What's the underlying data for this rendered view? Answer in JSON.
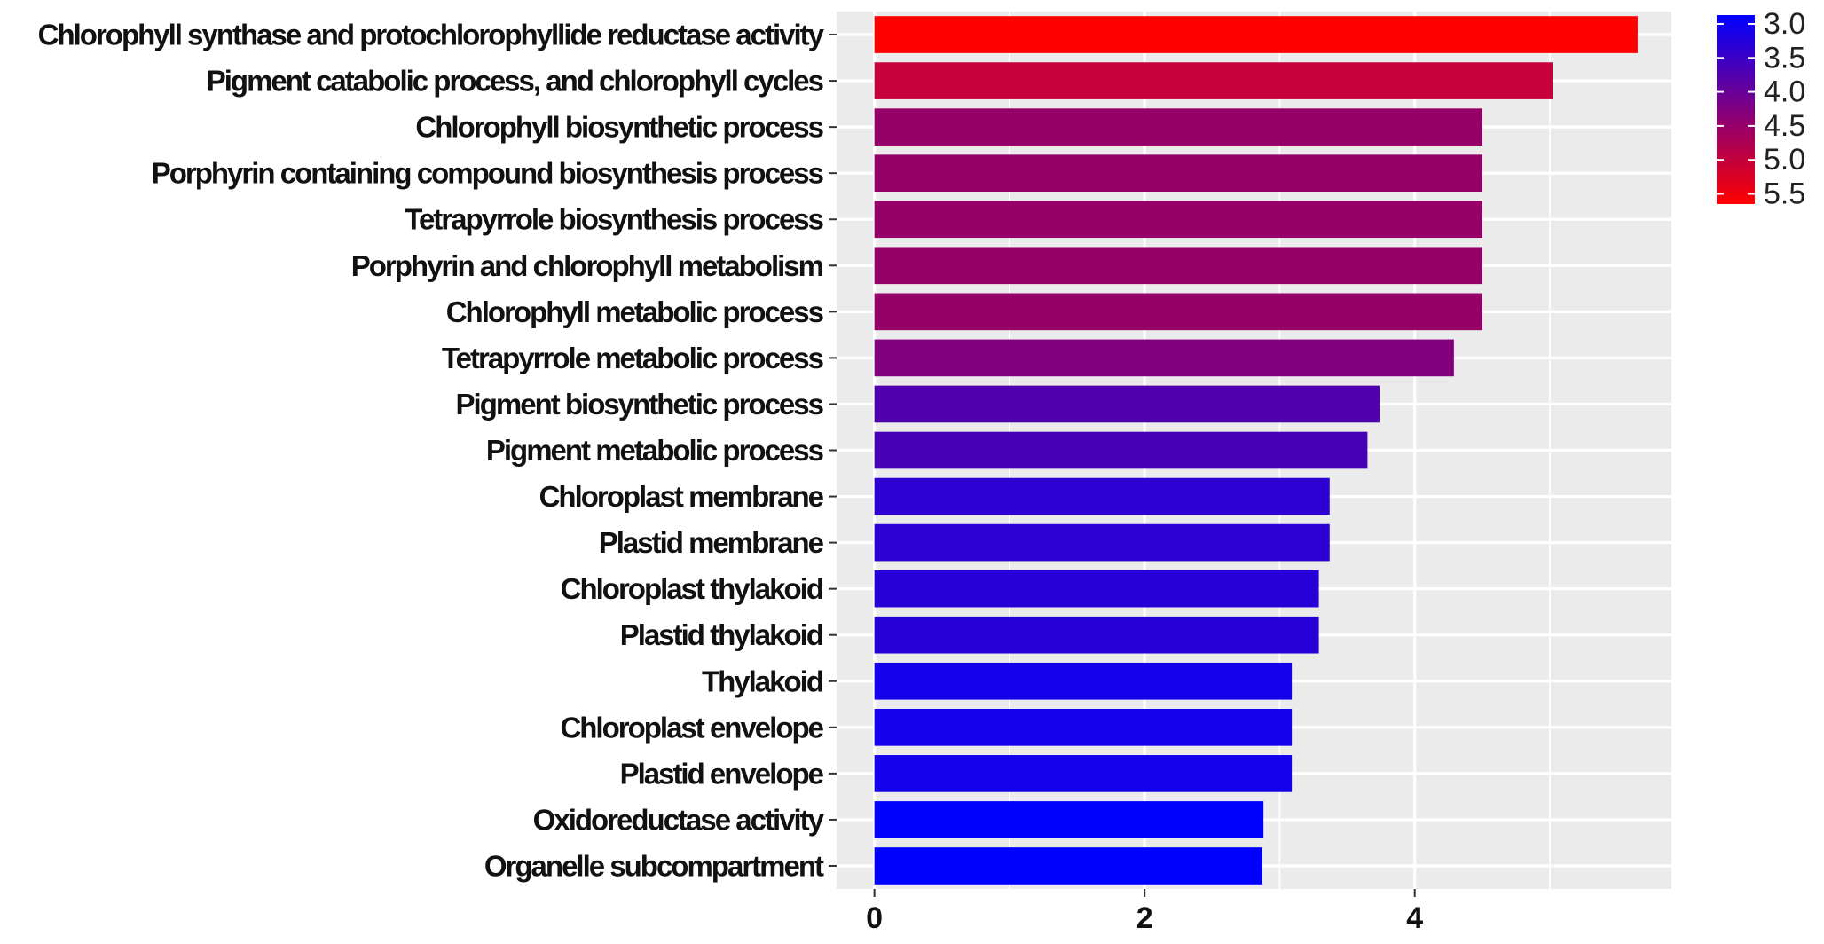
{
  "chart_data": {
    "type": "bar",
    "orientation": "horizontal",
    "categories": [
      "Chlorophyll synthase and protochlorophyllide reductase activity",
      "Pigment catabolic process, and chlorophyll cycles",
      "Chlorophyll biosynthetic process",
      "Porphyrin containing compound biosynthesis process",
      "Tetrapyrrole biosynthesis process",
      "Porphyrin and chlorophyll metabolism",
      "Chlorophyll metabolic process",
      "Tetrapyrrole metabolic process",
      "Pigment biosynthetic process",
      "Pigment metabolic process",
      "Chloroplast membrane",
      "Plastid membrane",
      "Chloroplast thylakoid",
      "Plastid thylakoid",
      "Thylakoid",
      "Chloroplast envelope",
      "Plastid envelope",
      "Oxidoreductase activity",
      "Organelle subcompartment"
    ],
    "values": [
      5.65,
      5.02,
      4.5,
      4.5,
      4.5,
      4.5,
      4.5,
      4.29,
      3.74,
      3.65,
      3.37,
      3.37,
      3.29,
      3.29,
      3.09,
      3.09,
      3.09,
      2.88,
      2.87
    ],
    "xlim": [
      -0.28,
      5.9
    ],
    "xticks": [
      0,
      2,
      4
    ],
    "xtick_labels": [
      "0",
      "2",
      "4"
    ],
    "grid": true,
    "background": "#EBEBEB",
    "color_scale": {
      "min": 2.87,
      "max": 5.65,
      "low_color": "#0000FF",
      "high_color": "#FF0000",
      "ticks": [
        3.0,
        3.5,
        4.0,
        4.5,
        5.0,
        5.5
      ],
      "tick_labels": [
        "3.0",
        "3.5",
        "4.0",
        "4.5",
        "5.0",
        "5.5"
      ],
      "legend_position": "top-right"
    },
    "title": "",
    "xlabel": "",
    "ylabel": ""
  }
}
